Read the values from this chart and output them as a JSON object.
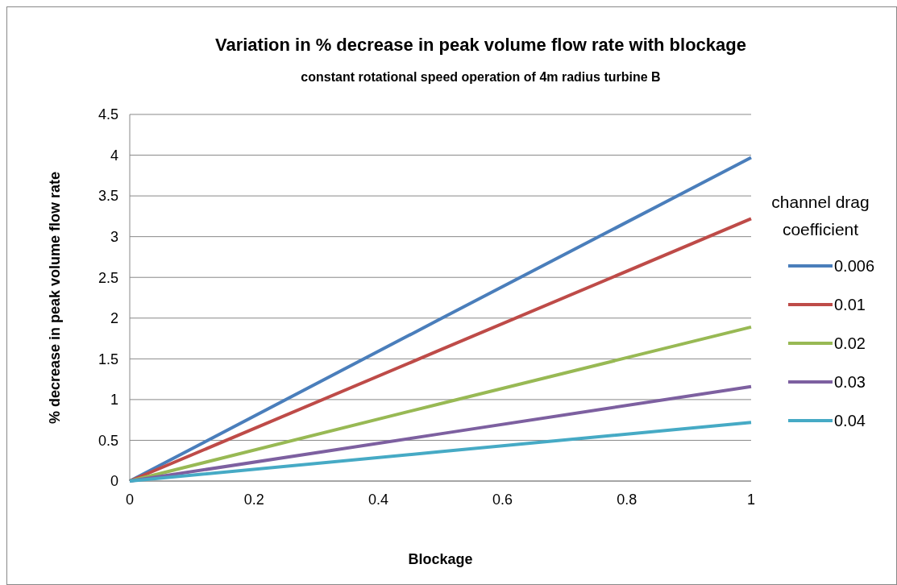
{
  "chart_data": {
    "type": "line",
    "title": "Variation in % decrease in peak volume flow rate with blockage",
    "subtitle": "constant rotational speed operation of 4m radius turbine B",
    "xlabel": "Blockage",
    "ylabel": "% decrease in peak volume flow rate",
    "legend_title": "channel drag coefficient",
    "x": [
      0,
      0.5,
      1
    ],
    "series": [
      {
        "name": "0.006",
        "color": "#4a7ebb",
        "values": [
          0,
          1.99,
          3.97
        ]
      },
      {
        "name": "0.01",
        "color": "#be4b48",
        "values": [
          0,
          1.61,
          3.22
        ]
      },
      {
        "name": "0.02",
        "color": "#98b954",
        "values": [
          0,
          0.95,
          1.89
        ]
      },
      {
        "name": "0.03",
        "color": "#7d60a0",
        "values": [
          0,
          0.58,
          1.16
        ]
      },
      {
        "name": "0.04",
        "color": "#46aac5",
        "values": [
          0,
          0.36,
          0.72
        ]
      }
    ],
    "xlim": [
      0,
      1
    ],
    "xticks": [
      0,
      0.2,
      0.4,
      0.6,
      0.8,
      1
    ],
    "ylim": [
      0,
      4.5
    ],
    "yticks": [
      0,
      0.5,
      1,
      1.5,
      2,
      2.5,
      3,
      3.5,
      4,
      4.5
    ],
    "grid": "y",
    "legend": "right",
    "marker": "none",
    "line_style": "solid"
  }
}
